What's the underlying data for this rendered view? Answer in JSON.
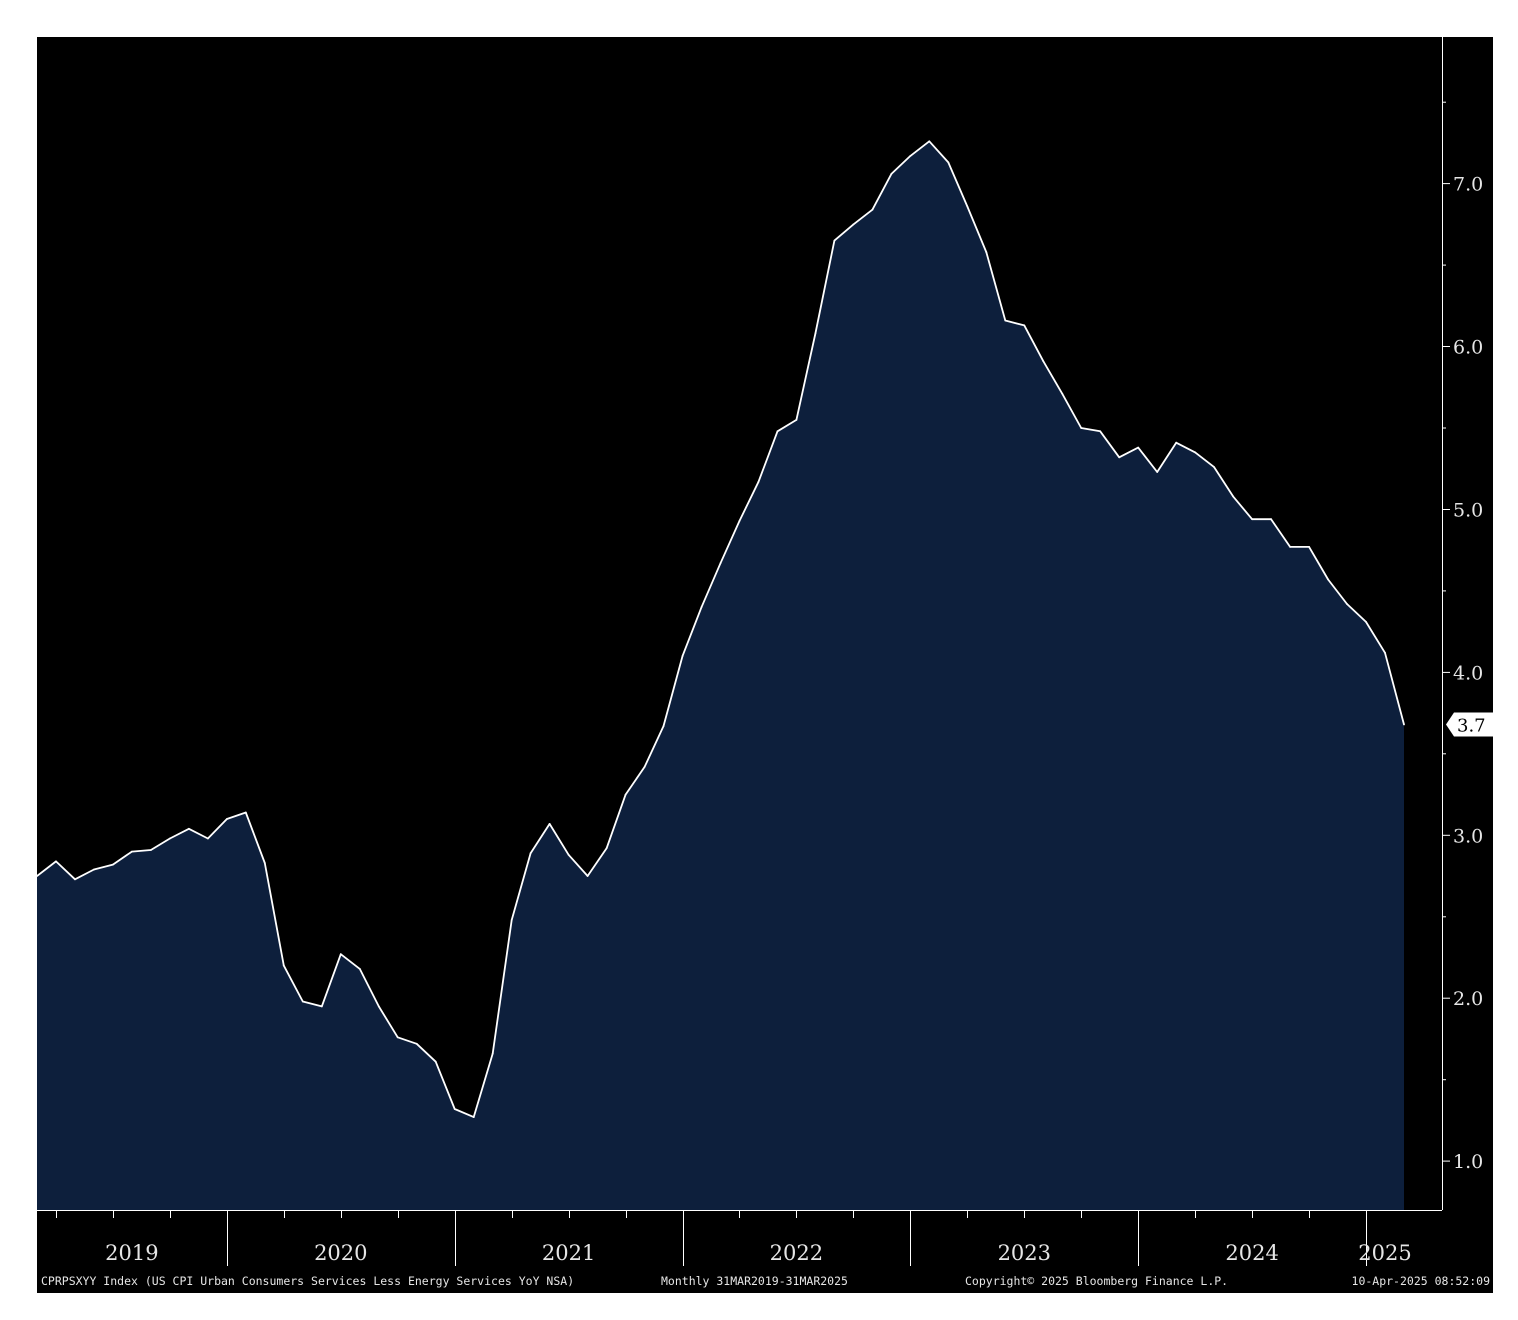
{
  "chart_data": {
    "type": "area",
    "title": "",
    "xlabel": "",
    "ylabel": "",
    "x_range": [
      "2019-03",
      "2025-03"
    ],
    "ylim": [
      0.7,
      7.9
    ],
    "y_ticks": [
      1.0,
      2.0,
      3.0,
      4.0,
      5.0,
      6.0,
      7.0
    ],
    "y_tick_labels": [
      "1.0",
      "2.0",
      "3.0",
      "4.0",
      "5.0",
      "6.0",
      "7.0"
    ],
    "x_year_labels": [
      "2019",
      "2020",
      "2021",
      "2022",
      "2023",
      "2024",
      "2025"
    ],
    "grid": false,
    "y_axis_position": "right",
    "last_value_label": "3.7",
    "series": [
      {
        "line_color": "#ffffff",
        "fill_color": "#0d1f3c",
        "points": [
          [
            "2019-03",
            2.75
          ],
          [
            "2019-04",
            2.84
          ],
          [
            "2019-05",
            2.73
          ],
          [
            "2019-06",
            2.79
          ],
          [
            "2019-07",
            2.82
          ],
          [
            "2019-08",
            2.9
          ],
          [
            "2019-09",
            2.91
          ],
          [
            "2019-10",
            2.98
          ],
          [
            "2019-11",
            3.04
          ],
          [
            "2019-12",
            2.98
          ],
          [
            "2020-01",
            3.1
          ],
          [
            "2020-02",
            3.14
          ],
          [
            "2020-03",
            2.83
          ],
          [
            "2020-04",
            2.2
          ],
          [
            "2020-05",
            1.98
          ],
          [
            "2020-06",
            1.95
          ],
          [
            "2020-07",
            2.27
          ],
          [
            "2020-08",
            2.18
          ],
          [
            "2020-09",
            1.95
          ],
          [
            "2020-10",
            1.76
          ],
          [
            "2020-11",
            1.72
          ],
          [
            "2020-12",
            1.61
          ],
          [
            "2021-01",
            1.32
          ],
          [
            "2021-02",
            1.27
          ],
          [
            "2021-03",
            1.66
          ],
          [
            "2021-04",
            2.48
          ],
          [
            "2021-05",
            2.89
          ],
          [
            "2021-06",
            3.07
          ],
          [
            "2021-07",
            2.88
          ],
          [
            "2021-08",
            2.75
          ],
          [
            "2021-09",
            2.92
          ],
          [
            "2021-10",
            3.25
          ],
          [
            "2021-11",
            3.42
          ],
          [
            "2021-12",
            3.67
          ],
          [
            "2022-01",
            4.1
          ],
          [
            "2022-02",
            4.4
          ],
          [
            "2022-03",
            4.67
          ],
          [
            "2022-04",
            4.93
          ],
          [
            "2022-05",
            5.17
          ],
          [
            "2022-06",
            5.48
          ],
          [
            "2022-07",
            5.55
          ],
          [
            "2022-08",
            6.08
          ],
          [
            "2022-09",
            6.65
          ],
          [
            "2022-10",
            6.75
          ],
          [
            "2022-11",
            6.84
          ],
          [
            "2022-12",
            7.06
          ],
          [
            "2023-01",
            7.17
          ],
          [
            "2023-02",
            7.26
          ],
          [
            "2023-03",
            7.13
          ],
          [
            "2023-04",
            6.86
          ],
          [
            "2023-05",
            6.58
          ],
          [
            "2023-06",
            6.16
          ],
          [
            "2023-07",
            6.13
          ],
          [
            "2023-08",
            5.91
          ],
          [
            "2023-09",
            5.71
          ],
          [
            "2023-10",
            5.5
          ],
          [
            "2023-11",
            5.48
          ],
          [
            "2023-12",
            5.32
          ],
          [
            "2024-01",
            5.38
          ],
          [
            "2024-02",
            5.23
          ],
          [
            "2024-03",
            5.41
          ],
          [
            "2024-04",
            5.35
          ],
          [
            "2024-05",
            5.26
          ],
          [
            "2024-06",
            5.08
          ],
          [
            "2024-07",
            4.94
          ],
          [
            "2024-08",
            4.94
          ],
          [
            "2024-09",
            4.77
          ],
          [
            "2024-10",
            4.77
          ],
          [
            "2024-11",
            4.57
          ],
          [
            "2024-12",
            4.42
          ],
          [
            "2025-01",
            4.31
          ],
          [
            "2025-02",
            4.12
          ],
          [
            "2025-03",
            3.68
          ]
        ]
      }
    ]
  },
  "footer": {
    "series_description": "CPRPSXYY Index (US CPI Urban Consumers Services Less Energy Services YoY NSA)",
    "frequency_range": "Monthly 31MAR2019-31MAR2025",
    "copyright": "Copyright© 2025 Bloomberg Finance L.P.",
    "timestamp": "10-Apr-2025 08:52:09"
  }
}
